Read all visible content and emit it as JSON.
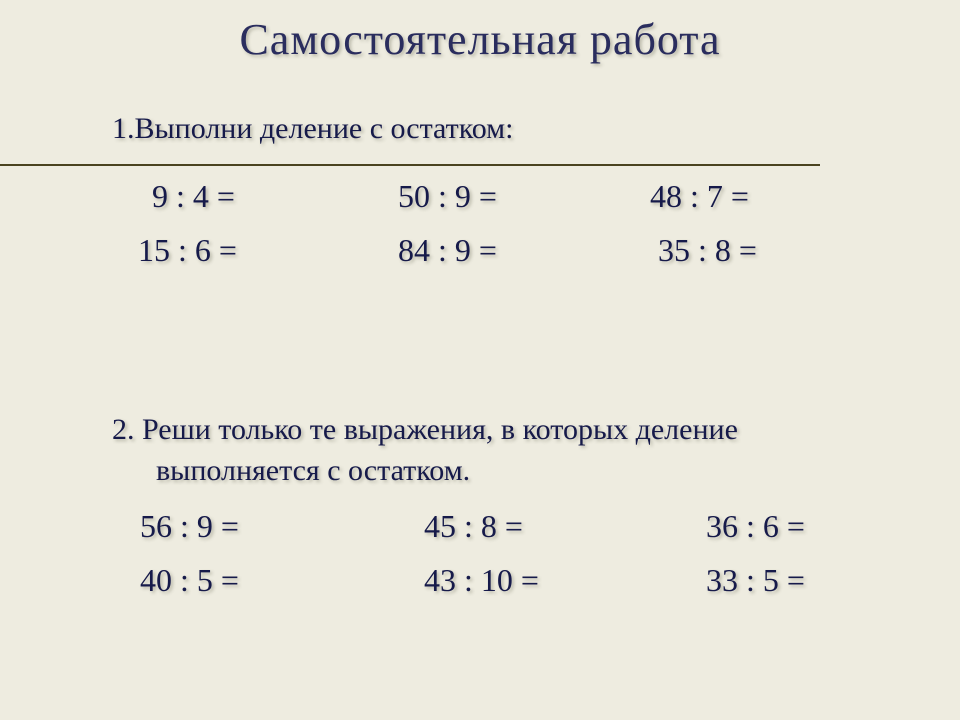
{
  "colors": {
    "background": "#eeece0",
    "text": "#161a4a",
    "rule": "#4a4320",
    "shadow": "rgba(120,120,100,0.45)"
  },
  "typography": {
    "family": "Times New Roman",
    "title_fontsize": 44,
    "heading_fontsize": 30,
    "equation_fontsize": 32
  },
  "title": "Самостоятельная  работа",
  "task1": {
    "heading": "1.Выполни деление с остатком:",
    "equations": {
      "r1c1": "9 : 4 =",
      "r1c2": "50 : 9 =",
      "r1c3": "48 : 7 =",
      "r2c1": "15 : 6 =",
      "r2c2": "84 : 9 =",
      "r2c3": "35 : 8 ="
    }
  },
  "task2": {
    "heading_line1": "2. Реши только те выражения, в которых деление",
    "heading_line2": "выполняется с остатком.",
    "equations": {
      "r1c1": "56 : 9 =",
      "r1c2": "45 : 8 =",
      "r1c3": "36 : 6 =",
      "r2c1": "40 : 5 =",
      "r2c2": "43 : 10 =",
      "r2c3": "33 : 5 ="
    }
  }
}
